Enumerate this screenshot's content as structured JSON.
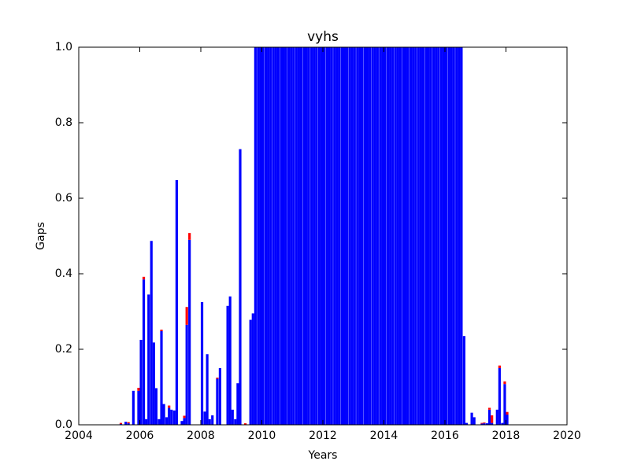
{
  "chart_data": {
    "type": "bar",
    "stacked": true,
    "title": "vyhs",
    "x_label": "Years",
    "y_label": "Gaps",
    "x": [
      2005.38,
      2005.54,
      2005.63,
      2005.79,
      2005.96,
      2006.04,
      2006.13,
      2006.21,
      2006.29,
      2006.38,
      2006.46,
      2006.54,
      2006.63,
      2006.71,
      2006.79,
      2006.88,
      2006.96,
      2007.04,
      2007.13,
      2007.21,
      2007.38,
      2007.46,
      2007.54,
      2007.63,
      2008.04,
      2008.13,
      2008.21,
      2008.29,
      2008.38,
      2008.54,
      2008.63,
      2008.88,
      2008.96,
      2009.04,
      2009.13,
      2009.21,
      2009.29,
      2009.46,
      2009.63,
      2009.71,
      2009.79,
      2009.88,
      2009.96,
      2010.04,
      2010.13,
      2010.21,
      2010.29,
      2010.38,
      2010.46,
      2010.54,
      2010.63,
      2010.71,
      2010.79,
      2010.88,
      2010.96,
      2011.04,
      2011.13,
      2011.21,
      2011.29,
      2011.38,
      2011.46,
      2011.54,
      2011.63,
      2011.71,
      2011.79,
      2011.88,
      2011.96,
      2012.04,
      2012.13,
      2012.21,
      2012.29,
      2012.38,
      2012.46,
      2012.54,
      2012.63,
      2012.71,
      2012.79,
      2012.88,
      2012.96,
      2013.04,
      2013.13,
      2013.21,
      2013.29,
      2013.38,
      2013.46,
      2013.54,
      2013.63,
      2013.71,
      2013.79,
      2013.88,
      2013.96,
      2014.04,
      2014.13,
      2014.21,
      2014.29,
      2014.38,
      2014.46,
      2014.54,
      2014.63,
      2014.71,
      2014.79,
      2014.88,
      2014.96,
      2015.04,
      2015.13,
      2015.21,
      2015.29,
      2015.38,
      2015.46,
      2015.54,
      2015.63,
      2015.71,
      2015.79,
      2015.88,
      2015.96,
      2016.04,
      2016.13,
      2016.21,
      2016.29,
      2016.38,
      2016.46,
      2016.54,
      2016.63,
      2016.71,
      2016.88,
      2016.96,
      2017.21,
      2017.29,
      2017.38,
      2017.46,
      2017.54,
      2017.71,
      2017.79,
      2017.88,
      2017.96,
      2018.04
    ],
    "series": [
      {
        "color": "#0000ff",
        "values": [
          0.002,
          0.008,
          0.004,
          0.09,
          0.09,
          0.225,
          0.385,
          0.015,
          0.345,
          0.487,
          0.218,
          0.097,
          0.015,
          0.248,
          0.055,
          0.02,
          0.045,
          0.04,
          0.038,
          0.648,
          0.01,
          0.018,
          0.265,
          0.49,
          0.325,
          0.035,
          0.187,
          0.015,
          0.025,
          0.122,
          0.15,
          0.315,
          0.34,
          0.04,
          0.015,
          0.11,
          0.73,
          0,
          0.278,
          0.295,
          1,
          1,
          1,
          1,
          1,
          1,
          1,
          1,
          1,
          1,
          1,
          1,
          1,
          1,
          1,
          1,
          1,
          1,
          1,
          1,
          1,
          1,
          1,
          1,
          1,
          1,
          1,
          1,
          1,
          1,
          1,
          1,
          1,
          1,
          1,
          1,
          1,
          1,
          1,
          1,
          1,
          1,
          1,
          1,
          1,
          1,
          1,
          1,
          1,
          1,
          1,
          1,
          1,
          1,
          1,
          1,
          1,
          1,
          1,
          1,
          1,
          1,
          1,
          1,
          1,
          1,
          1,
          1,
          1,
          1,
          1,
          1,
          1,
          1,
          1,
          1,
          1,
          1,
          1,
          1,
          1,
          1,
          0.235,
          0.005,
          0.032,
          0.02,
          0.003,
          0.004,
          0.004,
          0.04,
          0.005,
          0.04,
          0.15,
          0.005,
          0.108,
          0.027
        ]
      },
      {
        "color": "#ff0000",
        "values": [
          0.003,
          0,
          0.003,
          0,
          0.008,
          0,
          0.007,
          0,
          0,
          0,
          0,
          0,
          0,
          0.004,
          0,
          0,
          0.006,
          0,
          0,
          0,
          0,
          0.006,
          0.047,
          0.018,
          0,
          0,
          0,
          0,
          0,
          0.003,
          0,
          0,
          0,
          0,
          0,
          0,
          0,
          0.004,
          0,
          0,
          0,
          0,
          0,
          0,
          0,
          0,
          0,
          0,
          0,
          0,
          0,
          0,
          0,
          0,
          0,
          0,
          0,
          0,
          0,
          0,
          0,
          0,
          0,
          0,
          0,
          0,
          0,
          0,
          0,
          0,
          0,
          0,
          0,
          0,
          0,
          0,
          0,
          0,
          0,
          0,
          0,
          0,
          0,
          0,
          0,
          0,
          0,
          0,
          0,
          0,
          0,
          0,
          0,
          0,
          0,
          0,
          0,
          0,
          0,
          0,
          0,
          0,
          0,
          0,
          0,
          0,
          0,
          0,
          0,
          0,
          0,
          0,
          0,
          0,
          0,
          0,
          0,
          0,
          0,
          0,
          0,
          0,
          0,
          0,
          0,
          0,
          0.002,
          0.002,
          0,
          0.005,
          0.02,
          0,
          0.007,
          0,
          0.007,
          0.007
        ]
      }
    ],
    "xlim": [
      2004,
      2020
    ],
    "xticks": [
      2004,
      2006,
      2008,
      2010,
      2012,
      2014,
      2016,
      2018,
      2020
    ],
    "ylim": [
      0,
      1
    ],
    "yticks": [
      {
        "value": 0,
        "label": "0.0"
      },
      {
        "value": 0.2,
        "label": "0.2"
      },
      {
        "value": 0.4,
        "label": "0.4"
      },
      {
        "value": 0.6,
        "label": "0.6"
      },
      {
        "value": 0.8,
        "label": "0.8"
      },
      {
        "value": 1,
        "label": "1.0"
      }
    ],
    "grid": false
  }
}
